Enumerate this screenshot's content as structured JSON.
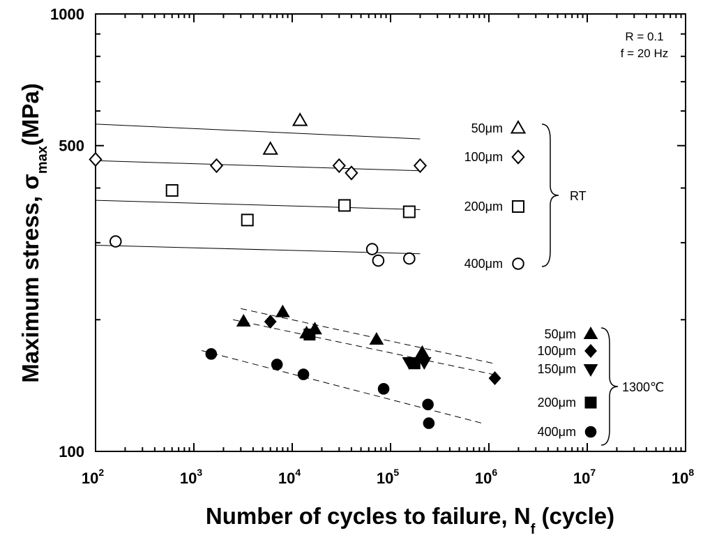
{
  "chart_data": {
    "type": "scatter",
    "x_scale": "log",
    "y_scale": "log",
    "xlim": [
      100,
      100000000
    ],
    "ylim": [
      100,
      1000
    ],
    "xlabel": {
      "main": "Number of cycles to failure, N",
      "sub": "f",
      "tail": " (cycle)"
    },
    "ylabel": {
      "main": "Maximum stress, σ",
      "sub": "max",
      "tail": "(MPa)"
    },
    "x_ticks": [
      {
        "value": 100,
        "base": "10",
        "exp": "2"
      },
      {
        "value": 1000,
        "base": "10",
        "exp": "3"
      },
      {
        "value": 10000,
        "base": "10",
        "exp": "4"
      },
      {
        "value": 100000,
        "base": "10",
        "exp": "5"
      },
      {
        "value": 1000000,
        "base": "10",
        "exp": "6"
      },
      {
        "value": 10000000,
        "base": "10",
        "exp": "7"
      },
      {
        "value": 100000000,
        "base": "10",
        "exp": "8"
      }
    ],
    "y_ticks": [
      {
        "value": 100,
        "label": "100"
      },
      {
        "value": 500,
        "label": "500"
      },
      {
        "value": 1000,
        "label": "1000"
      }
    ],
    "annotation": [
      "R = 0.1",
      "f = 20 Hz"
    ],
    "groups": [
      {
        "label": "RT",
        "bracket": "brace"
      },
      {
        "label": "1300℃",
        "bracket": "brace"
      }
    ],
    "series": [
      {
        "name": "50 μm",
        "label": "50μm",
        "group": "RT",
        "marker": "triangle",
        "filled": false,
        "points": [
          [
            6000,
            490
          ],
          [
            12000,
            570
          ]
        ],
        "fit": {
          "style": "solid",
          "x": [
            100,
            200000
          ],
          "y": [
            560,
            518
          ]
        }
      },
      {
        "name": "100 μm",
        "label": "100μm",
        "group": "RT",
        "marker": "diamond",
        "filled": false,
        "points": [
          [
            100,
            465
          ],
          [
            1700,
            450
          ],
          [
            30000,
            450
          ],
          [
            40000,
            433
          ],
          [
            200000,
            450
          ]
        ],
        "fit": {
          "style": "solid",
          "x": [
            100,
            200000
          ],
          "y": [
            462,
            438
          ]
        }
      },
      {
        "name": "200 μm",
        "label": "200μm",
        "group": "RT",
        "marker": "square",
        "filled": false,
        "points": [
          [
            600,
            395
          ],
          [
            3500,
            338
          ],
          [
            34000,
            365
          ],
          [
            155000,
            353
          ]
        ],
        "fit": {
          "style": "solid",
          "x": [
            100,
            200000
          ],
          "y": [
            375,
            357
          ]
        }
      },
      {
        "name": "400 μm",
        "label": "400μm",
        "group": "RT",
        "marker": "circle",
        "filled": false,
        "points": [
          [
            160,
            302
          ],
          [
            65000,
            290
          ],
          [
            75000,
            273
          ],
          [
            155000,
            276
          ]
        ],
        "fit": {
          "style": "solid",
          "x": [
            100,
            200000
          ],
          "y": [
            296,
            283
          ]
        }
      },
      {
        "name": "50 μm",
        "label": "50μm",
        "group": "1300℃",
        "marker": "triangle",
        "filled": true,
        "points": [
          [
            3200,
            198
          ],
          [
            8000,
            208
          ],
          [
            14000,
            186
          ],
          [
            17000,
            190
          ],
          [
            72000,
            180
          ],
          [
            210000,
            168
          ]
        ],
        "fit": {
          "style": "dashed",
          "x": [
            3000,
            1100000
          ],
          "y": [
            212,
            159
          ]
        }
      },
      {
        "name": "100 μm",
        "label": "100μm",
        "group": "1300℃",
        "marker": "diamond",
        "filled": true,
        "points": [
          [
            6000,
            198
          ],
          [
            1150000,
            147
          ]
        ],
        "fit": {
          "style": "dashed",
          "x": [
            2500,
            1100000
          ],
          "y": [
            200,
            150
          ]
        }
      },
      {
        "name": "150 μm",
        "label": "150μm",
        "group": "1300℃",
        "marker": "triangle-down",
        "filled": true,
        "points": [
          [
            155000,
            160
          ],
          [
            220000,
            160
          ]
        ],
        "fit": null
      },
      {
        "name": "200 μm",
        "label": "200μm",
        "group": "1300℃",
        "marker": "square",
        "filled": true,
        "points": [
          [
            15000,
            185
          ],
          [
            175000,
            159
          ]
        ],
        "fit": null
      },
      {
        "name": "400 μm",
        "label": "400μm",
        "group": "1300℃",
        "marker": "circle",
        "filled": true,
        "points": [
          [
            1500,
            167
          ],
          [
            7000,
            158
          ],
          [
            13000,
            150
          ],
          [
            85000,
            139
          ],
          [
            240000,
            128
          ],
          [
            245000,
            116
          ]
        ],
        "fit": {
          "style": "dashed",
          "x": [
            1200,
            850000
          ],
          "y": [
            170,
            116
          ]
        }
      }
    ]
  }
}
